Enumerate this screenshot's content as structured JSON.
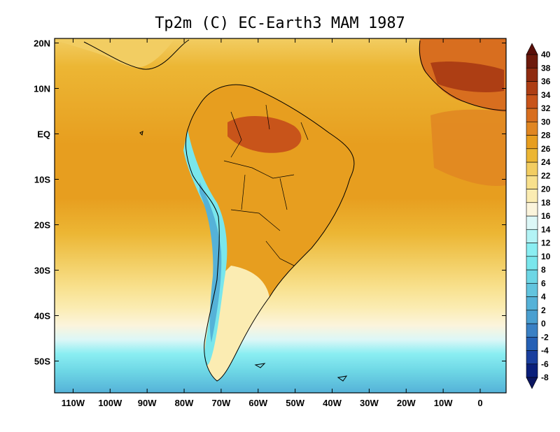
{
  "title": "Tp2m (C)  EC-Earth3 MAM 1987",
  "lat_ticks": [
    "20N",
    "10N",
    "EQ",
    "10S",
    "20S",
    "30S",
    "40S",
    "50S"
  ],
  "lon_ticks": [
    "110W",
    "100W",
    "90W",
    "80W",
    "70W",
    "60W",
    "50W",
    "40W",
    "30W",
    "20W",
    "10W",
    "0"
  ],
  "lon_range": [
    -115,
    7
  ],
  "lat_range": [
    -57,
    21
  ],
  "colorbar": {
    "levels": [
      -8,
      -6,
      -4,
      -2,
      0,
      2,
      4,
      6,
      8,
      10,
      12,
      14,
      16,
      18,
      20,
      22,
      24,
      26,
      28,
      30,
      32,
      34,
      36,
      38,
      40
    ],
    "colors": [
      "#0a1f7a",
      "#1a3f9e",
      "#2560b5",
      "#3a80c4",
      "#4a9fd0",
      "#55b2d8",
      "#62c4de",
      "#6dd6e5",
      "#79e6ec",
      "#8aeef2",
      "#b3f3f5",
      "#dcf7f7",
      "#fbf4dc",
      "#fbecb2",
      "#f8e08c",
      "#f2cd62",
      "#ecb634",
      "#e79e1f",
      "#e08622",
      "#d86e1f",
      "#c8541a",
      "#ad3e14",
      "#8f2b10",
      "#6d1a0c"
    ],
    "under_color": "#0b1660",
    "over_color": "#5a0f0a"
  }
}
